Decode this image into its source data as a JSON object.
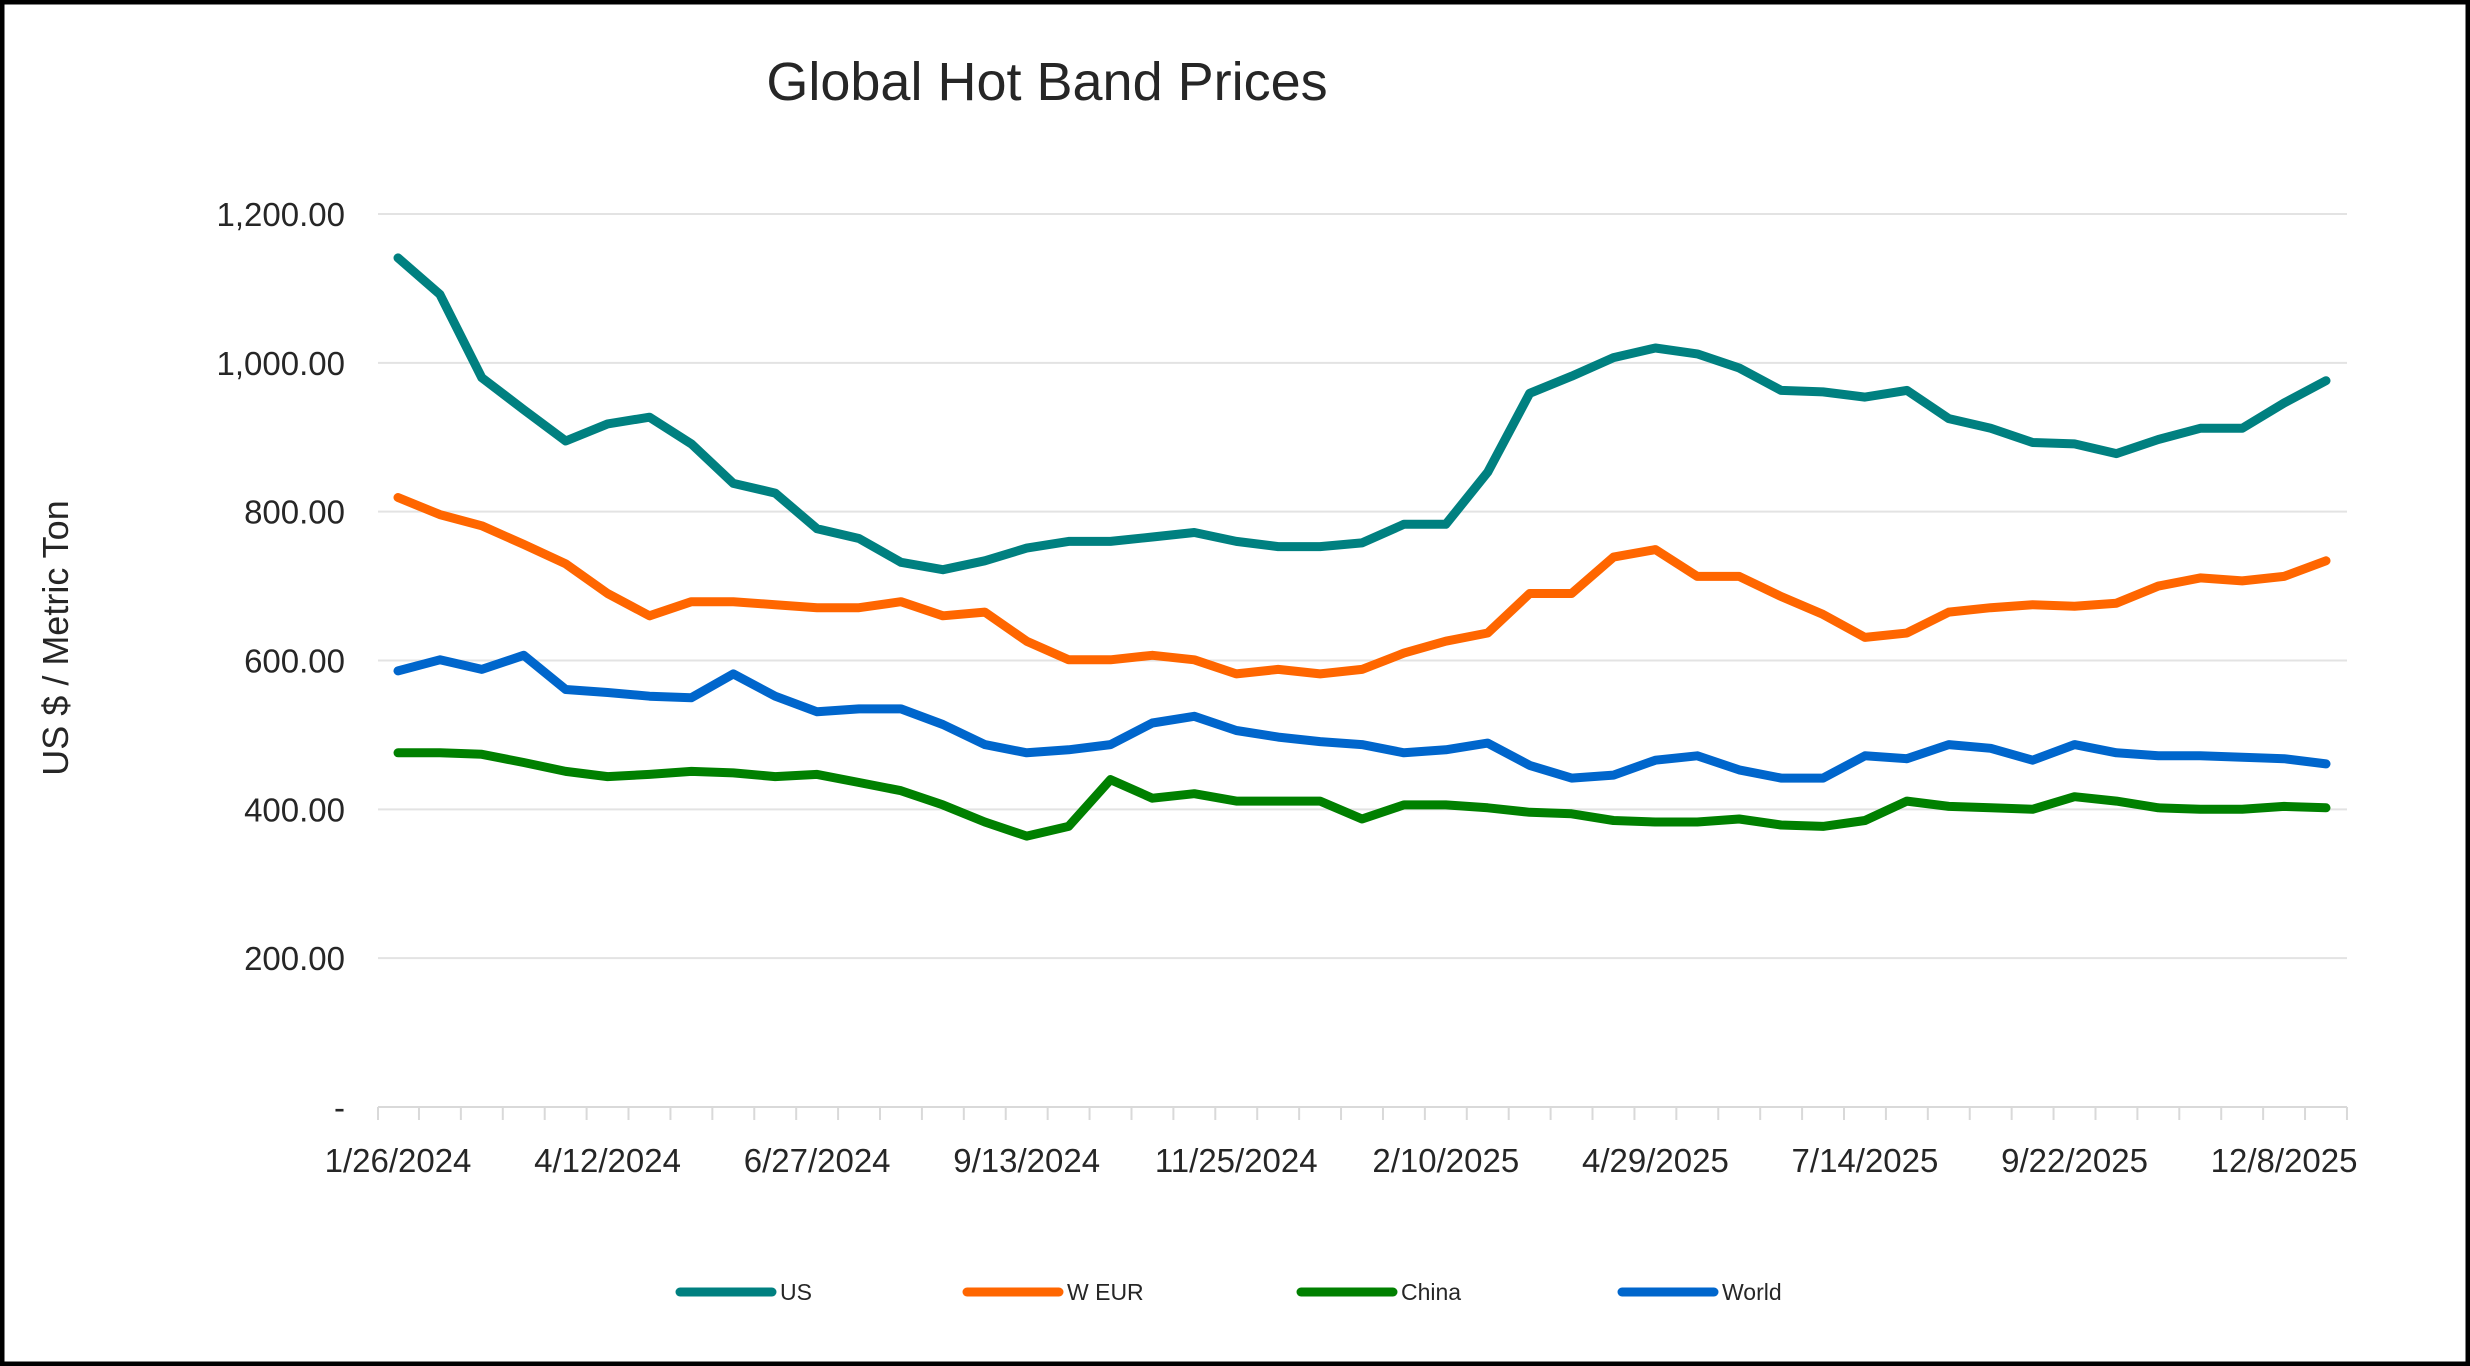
{
  "chart_data": {
    "type": "line",
    "title": "Global Hot Band Prices",
    "xlabel": "",
    "ylabel": "US $ / Metric Ton",
    "ylim": [
      0,
      1200
    ],
    "yticks": [
      0,
      200,
      400,
      600,
      800,
      1000,
      1200
    ],
    "ytick_labels": [
      "-",
      "200.00",
      "400.00",
      "600.00",
      "800.00",
      "1,000.00",
      "1,200.00"
    ],
    "x_tick_labels": [
      "1/26/2024",
      "4/12/2024",
      "6/27/2024",
      "9/13/2024",
      "11/25/2024",
      "2/10/2025",
      "4/29/2025",
      "7/14/2025",
      "9/22/2025",
      "12/8/2025"
    ],
    "x_tick_every": 5,
    "grid": true,
    "legend_position": "bottom",
    "series": [
      {
        "name": "US",
        "color": "#008080",
        "values": [
          1141,
          1092,
          980,
          937,
          895,
          918,
          927,
          891,
          838,
          825,
          777,
          764,
          732,
          722,
          734,
          751,
          760,
          760,
          766,
          772,
          760,
          753,
          753,
          758,
          783,
          783,
          853,
          959,
          982,
          1007,
          1020,
          1012,
          993,
          963,
          961,
          954,
          963,
          925,
          912,
          893,
          891,
          878,
          897,
          912,
          912,
          946,
          976
        ]
      },
      {
        "name": "W EUR",
        "color": "#FF6600",
        "values": [
          819,
          796,
          781,
          756,
          730,
          690,
          660,
          679,
          679,
          675,
          671,
          671,
          679,
          660,
          665,
          626,
          601,
          601,
          607,
          601,
          582,
          588,
          582,
          588,
          610,
          626,
          637,
          690,
          690,
          739,
          749,
          713,
          713,
          686,
          662,
          631,
          637,
          665,
          671,
          675,
          673,
          677,
          700,
          711,
          707,
          713,
          734
        ]
      },
      {
        "name": "China",
        "color": "#008000",
        "values": [
          476,
          476,
          474,
          463,
          451,
          444,
          447,
          451,
          449,
          444,
          447,
          436,
          425,
          406,
          383,
          364,
          377,
          440,
          415,
          421,
          411,
          411,
          411,
          387,
          406,
          406,
          402,
          396,
          394,
          385,
          383,
          383,
          387,
          379,
          377,
          385,
          411,
          404,
          402,
          400,
          417,
          411,
          402,
          400,
          400,
          404,
          402
        ]
      },
      {
        "name": "World",
        "color": "#0066CC",
        "values": [
          586,
          601,
          588,
          607,
          561,
          557,
          552,
          550,
          582,
          552,
          531,
          535,
          535,
          514,
          487,
          476,
          480,
          487,
          516,
          525,
          506,
          497,
          491,
          487,
          476,
          480,
          489,
          459,
          442,
          446,
          466,
          472,
          453,
          442,
          442,
          472,
          468,
          487,
          482,
          466,
          487,
          476,
          472,
          472,
          470,
          468,
          461
        ]
      }
    ]
  }
}
